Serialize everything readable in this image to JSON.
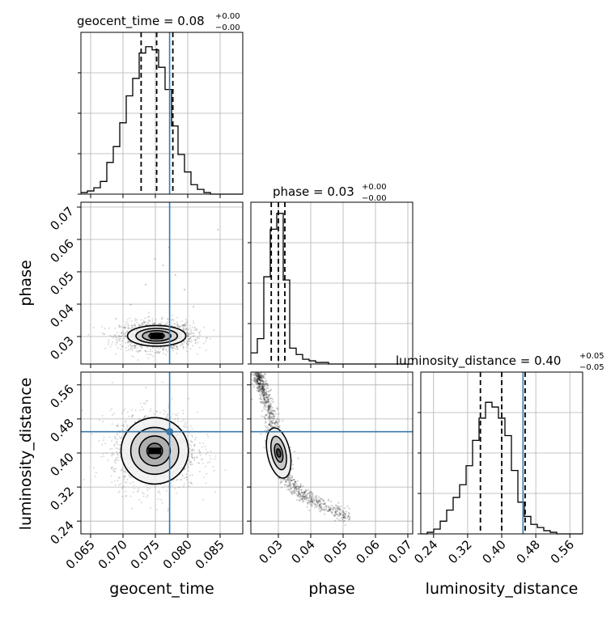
{
  "chart_data": {
    "type": "corner",
    "parameters": [
      "geocent_time",
      "phase",
      "luminosity_distance"
    ],
    "truth": {
      "geocent_time": 0.0772,
      "phase": null,
      "luminosity_distance": 0.45
    },
    "titles": {
      "geocent_time": {
        "name": "geocent_time",
        "value": "0.08",
        "upper": "+0.00",
        "lower": "−0.00"
      },
      "phase": {
        "name": "phase",
        "value": "0.03",
        "upper": "+0.00",
        "lower": "−0.00"
      },
      "luminosity_distance": {
        "name": "luminosity_distance",
        "value": "0.40",
        "upper": "+0.05",
        "lower": "−0.05"
      }
    },
    "axes": {
      "geocent_time": {
        "range": [
          0.0635,
          0.0885
        ],
        "ticks": [
          0.065,
          0.07,
          0.075,
          0.08,
          0.085
        ],
        "tick_labels": [
          "0.065",
          "0.070",
          "0.075",
          "0.080",
          "0.085"
        ],
        "label": "geocent_time"
      },
      "phase": {
        "range": [
          0.0215,
          0.0715
        ],
        "ticks": [
          0.03,
          0.04,
          0.05,
          0.06,
          0.07
        ],
        "tick_labels": [
          "0.03",
          "0.04",
          "0.05",
          "0.06",
          "0.07"
        ],
        "label": "phase"
      },
      "luminosity_distance": {
        "range": [
          0.21,
          0.59
        ],
        "ticks": [
          0.24,
          0.32,
          0.4,
          0.48,
          0.56
        ],
        "tick_labels": [
          "0.24",
          "0.32",
          "0.40",
          "0.48",
          "0.56"
        ],
        "label": "luminosity_distance"
      }
    },
    "histograms": {
      "geocent_time": {
        "bin_start": 0.0635,
        "bin_width": 0.001,
        "counts": [
          0.01,
          0.02,
          0.04,
          0.08,
          0.2,
          0.3,
          0.45,
          0.62,
          0.73,
          0.89,
          0.93,
          0.91,
          0.8,
          0.66,
          0.43,
          0.25,
          0.14,
          0.06,
          0.03,
          0.01,
          0.0,
          0.0,
          0.0,
          0.0,
          0.0
        ],
        "quantiles": [
          0.0728,
          0.0752,
          0.0777
        ]
      },
      "phase": {
        "bin_start": 0.0215,
        "bin_width": 0.002,
        "counts": [
          0.07,
          0.16,
          0.55,
          0.85,
          0.95,
          0.53,
          0.1,
          0.06,
          0.03,
          0.02,
          0.01,
          0.01,
          0.0,
          0.0,
          0.0,
          0.0,
          0.0,
          0.0,
          0.0,
          0.0,
          0.0,
          0.0,
          0.0,
          0.0,
          0.0
        ],
        "quantiles": [
          0.0278,
          0.03,
          0.032
        ]
      },
      "luminosity_distance": {
        "bin_start": 0.21,
        "bin_width": 0.0152,
        "counts": [
          0.0,
          0.01,
          0.03,
          0.08,
          0.15,
          0.23,
          0.31,
          0.43,
          0.59,
          0.73,
          0.83,
          0.8,
          0.73,
          0.62,
          0.4,
          0.2,
          0.11,
          0.06,
          0.04,
          0.02,
          0.01,
          0.0,
          0.0,
          0.0,
          0.0
        ],
        "quantiles": [
          0.35,
          0.4,
          0.455
        ]
      }
    },
    "joint": {
      "phase_vs_geocent_time": {
        "center": [
          0.0752,
          0.0302
        ],
        "spread": [
          0.0028,
          0.0022
        ],
        "contour_radii": [
          [
            0.0012,
            0.0009
          ],
          [
            0.0022,
            0.0016
          ],
          [
            0.0032,
            0.0023
          ],
          [
            0.0045,
            0.0032
          ]
        ],
        "outliers": [
          [
            0.0762,
            0.052
          ],
          [
            0.0781,
            0.049
          ],
          [
            0.0735,
            0.046
          ],
          [
            0.0749,
            0.054
          ],
          [
            0.0809,
            0.0392
          ],
          [
            0.0712,
            0.0398
          ],
          [
            0.0689,
            0.0355
          ],
          [
            0.0847,
            0.063
          ],
          [
            0.0771,
            0.0575
          ],
          [
            0.0795,
            0.0445
          ]
        ]
      },
      "luminosity_distance_vs_geocent_time": {
        "center": [
          0.0749,
          0.405
        ],
        "spread": [
          0.0033,
          0.045
        ],
        "contour_radii": [
          [
            0.0012,
            0.018
          ],
          [
            0.0024,
            0.035
          ],
          [
            0.0037,
            0.055
          ],
          [
            0.0052,
            0.078
          ]
        ]
      },
      "luminosity_distance_vs_phase": {
        "curve": [
          [
            0.0235,
            0.588
          ],
          [
            0.026,
            0.53
          ],
          [
            0.0285,
            0.455
          ],
          [
            0.03,
            0.4
          ],
          [
            0.032,
            0.355
          ],
          [
            0.035,
            0.315
          ],
          [
            0.04,
            0.29
          ],
          [
            0.046,
            0.268
          ],
          [
            0.052,
            0.25
          ]
        ]
      }
    }
  }
}
